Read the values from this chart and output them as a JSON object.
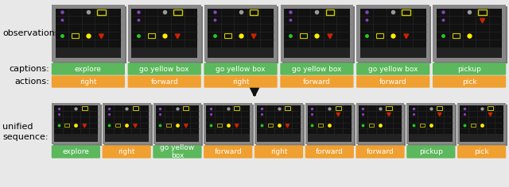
{
  "bg_color": "#e8e8e8",
  "top_row": {
    "captions": [
      "explore",
      "go yellow box",
      "go yellow box",
      "go yellow box",
      "go yellow box",
      "pickup"
    ],
    "actions": [
      "right",
      "forward",
      "right",
      "forward",
      "forward",
      "pick"
    ],
    "n": 6
  },
  "bottom_row": {
    "tokens": [
      "explore",
      "right",
      "go yellow\nbox",
      "forward",
      "right",
      "forward",
      "forward",
      "pickup",
      "pick"
    ],
    "token_colors": [
      "#5cb85c",
      "#f0a030",
      "#5cb85c",
      "#f0a030",
      "#f0a030",
      "#f0a030",
      "#f0a030",
      "#5cb85c",
      "#f0a030"
    ],
    "n": 9
  },
  "caption_color": "#5cb85c",
  "action_color": "#f0a030",
  "label_fontsize": 8.0,
  "token_fontsize": 6.5,
  "arrow_color": "#111111"
}
